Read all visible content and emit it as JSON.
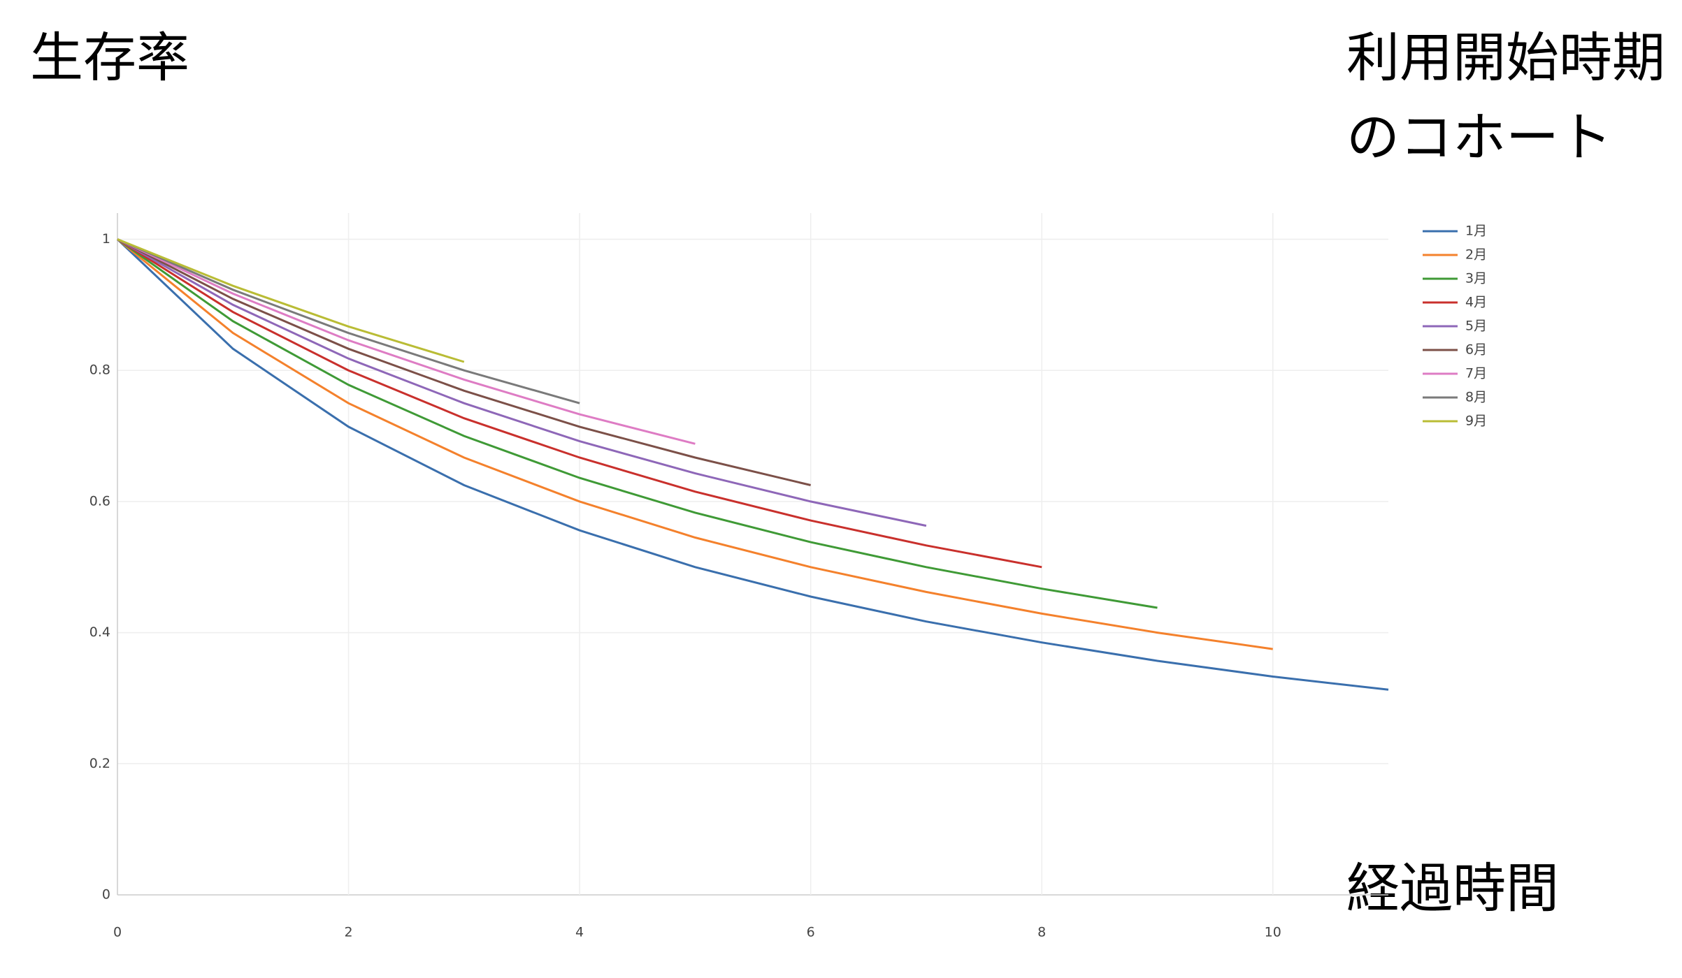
{
  "chart_data": {
    "type": "line",
    "y_title": "生存率",
    "x_title": "経過時間",
    "legend_title": [
      "利用開始時期",
      "のコホート"
    ],
    "x": [
      0,
      1,
      2,
      3,
      4,
      5,
      6,
      7,
      8,
      9,
      10,
      11
    ],
    "series": [
      {
        "name": "1月",
        "color": "#3a6fad",
        "values": [
          1,
          0.833,
          0.714,
          0.625,
          0.556,
          0.5,
          0.455,
          0.417,
          0.385,
          0.357,
          0.333,
          0.313
        ]
      },
      {
        "name": "2月",
        "color": "#f4812c",
        "values": [
          1,
          0.857,
          0.75,
          0.667,
          0.6,
          0.545,
          0.5,
          0.462,
          0.429,
          0.4,
          0.375,
          null
        ]
      },
      {
        "name": "3月",
        "color": "#3f9a36",
        "values": [
          1,
          0.875,
          0.778,
          0.7,
          0.636,
          0.583,
          0.538,
          0.5,
          0.467,
          0.438,
          null,
          null
        ]
      },
      {
        "name": "4月",
        "color": "#c9302c",
        "values": [
          1,
          0.889,
          0.8,
          0.727,
          0.667,
          0.615,
          0.571,
          0.533,
          0.5,
          null,
          null,
          null
        ]
      },
      {
        "name": "5月",
        "color": "#8e67b8",
        "values": [
          1,
          0.9,
          0.818,
          0.75,
          0.692,
          0.643,
          0.6,
          0.563,
          null,
          null,
          null,
          null
        ]
      },
      {
        "name": "6月",
        "color": "#7c5048",
        "values": [
          1,
          0.909,
          0.833,
          0.769,
          0.714,
          0.667,
          0.625,
          null,
          null,
          null,
          null,
          null
        ]
      },
      {
        "name": "7月",
        "color": "#de7cc4",
        "values": [
          1,
          0.917,
          0.846,
          0.786,
          0.733,
          0.688,
          null,
          null,
          null,
          null,
          null,
          null
        ]
      },
      {
        "name": "8月",
        "color": "#7a7a7a",
        "values": [
          1,
          0.923,
          0.857,
          0.8,
          0.75,
          null,
          null,
          null,
          null,
          null,
          null,
          null
        ]
      },
      {
        "name": "9月",
        "color": "#b9bc35",
        "values": [
          1,
          0.929,
          0.867,
          0.813,
          null,
          null,
          null,
          null,
          null,
          null,
          null,
          null
        ]
      }
    ],
    "xlim": [
      0,
      11
    ],
    "ylim": [
      0,
      1.04
    ],
    "xticks": [
      0,
      2,
      4,
      6,
      8,
      10
    ],
    "yticks": [
      0,
      0.2,
      0.4,
      0.6,
      0.8,
      1
    ],
    "grid": true
  }
}
